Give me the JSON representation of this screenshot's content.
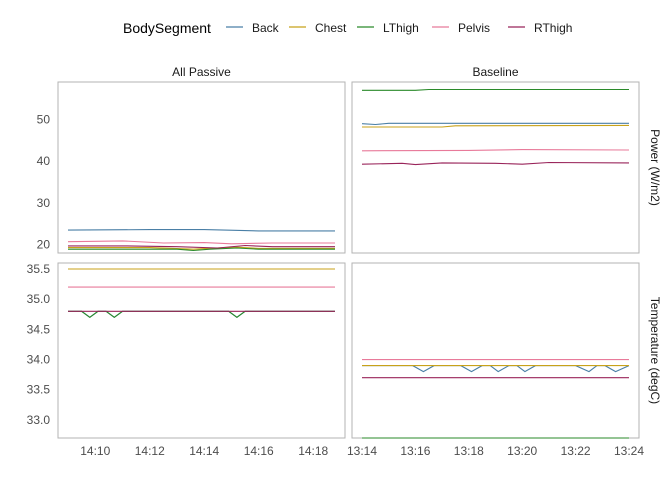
{
  "chart_data": {
    "type": "line",
    "legend": {
      "title": "BodySegment",
      "placement": "top",
      "entries": [
        {
          "name": "Back",
          "color": "#4a7fa6"
        },
        {
          "name": "Chest",
          "color": "#c8a21a"
        },
        {
          "name": "LThigh",
          "color": "#2a8a2a"
        },
        {
          "name": "Pelvis",
          "color": "#e87a9a"
        },
        {
          "name": "RThigh",
          "color": "#99245a"
        }
      ]
    },
    "columns": [
      {
        "label": "All Passive",
        "x_range": [
          "14:09",
          "14:18.8"
        ],
        "x_ticks": [
          "14:10",
          "14:12",
          "14:14",
          "14:16",
          "14:18"
        ]
      },
      {
        "label": "Baseline",
        "x_range": [
          "13:14",
          "13:24"
        ],
        "x_ticks": [
          "13:14",
          "13:16",
          "13:18",
          "13:20",
          "13:22",
          "13:24"
        ]
      }
    ],
    "rows": [
      {
        "label": "Power (W/m2)",
        "ylim": [
          18,
          59
        ],
        "y_ticks": [
          "20",
          "30",
          "40",
          "50"
        ]
      },
      {
        "label": "Temperature (degC)",
        "ylim": [
          32.7,
          35.6
        ],
        "y_ticks": [
          "33.0",
          "33.5",
          "34.0",
          "34.5",
          "35.0",
          "35.5"
        ]
      }
    ],
    "grid": false,
    "panels": [
      {
        "row": 0,
        "col": 0,
        "series": [
          {
            "name": "Back",
            "points": [
              [
                "14:09",
                23.5
              ],
              [
                "14:12",
                23.6
              ],
              [
                "14:14",
                23.6
              ],
              [
                "14:16",
                23.3
              ],
              [
                "14:18.8",
                23.3
              ]
            ]
          },
          {
            "name": "Chest",
            "points": [
              [
                "14:09",
                19.3
              ],
              [
                "14:12",
                19.3
              ],
              [
                "14:13.6",
                18.9
              ],
              [
                "14:14.1",
                19.1
              ],
              [
                "14:15.2",
                19.4
              ],
              [
                "14:16",
                19.1
              ],
              [
                "14:18.8",
                19.1
              ]
            ]
          },
          {
            "name": "LThigh",
            "points": [
              [
                "14:09",
                18.9
              ],
              [
                "14:13",
                18.9
              ],
              [
                "14:13.6",
                18.6
              ],
              [
                "14:14.2",
                18.9
              ],
              [
                "14:15.2",
                19.2
              ],
              [
                "14:16",
                18.9
              ],
              [
                "14:18.8",
                18.9
              ]
            ]
          },
          {
            "name": "Pelvis",
            "points": [
              [
                "14:09",
                20.7
              ],
              [
                "14:11",
                20.9
              ],
              [
                "14:12.5",
                20.4
              ],
              [
                "14:14",
                20.5
              ],
              [
                "14:15",
                20.2
              ],
              [
                "14:16.5",
                20.4
              ],
              [
                "14:18.8",
                20.4
              ]
            ]
          },
          {
            "name": "RThigh",
            "points": [
              [
                "14:09",
                19.7
              ],
              [
                "14:11",
                19.7
              ],
              [
                "14:13",
                19.5
              ],
              [
                "14:14.5",
                19.2
              ],
              [
                "14:15.5",
                19.8
              ],
              [
                "14:16.5",
                19.5
              ],
              [
                "14:18.8",
                19.5
              ]
            ]
          }
        ]
      },
      {
        "row": 0,
        "col": 1,
        "series": [
          {
            "name": "Back",
            "points": [
              [
                "13:14",
                49.0
              ],
              [
                "13:14.5",
                48.8
              ],
              [
                "13:15",
                49.1
              ],
              [
                "13:24",
                49.1
              ]
            ]
          },
          {
            "name": "Chest",
            "points": [
              [
                "13:14",
                48.2
              ],
              [
                "13:17",
                48.2
              ],
              [
                "13:17.5",
                48.5
              ],
              [
                "13:24",
                48.6
              ]
            ]
          },
          {
            "name": "LThigh",
            "points": [
              [
                "13:14",
                57.0
              ],
              [
                "13:16",
                57.0
              ],
              [
                "13:16.5",
                57.2
              ],
              [
                "13:24",
                57.2
              ]
            ]
          },
          {
            "name": "Pelvis",
            "points": [
              [
                "13:14",
                42.5
              ],
              [
                "13:18",
                42.6
              ],
              [
                "13:20",
                42.8
              ],
              [
                "13:24",
                42.7
              ]
            ]
          },
          {
            "name": "RThigh",
            "points": [
              [
                "13:14",
                39.3
              ],
              [
                "13:15.5",
                39.5
              ],
              [
                "13:16",
                39.2
              ],
              [
                "13:17",
                39.6
              ],
              [
                "13:19",
                39.5
              ],
              [
                "13:20",
                39.3
              ],
              [
                "13:21",
                39.7
              ],
              [
                "13:24",
                39.6
              ]
            ]
          }
        ]
      },
      {
        "row": 1,
        "col": 0,
        "series": [
          {
            "name": "Back",
            "points": [
              [
                "14:09",
                34.8
              ],
              [
                "14:09.5",
                34.8
              ],
              [
                "14:09.8",
                34.7
              ],
              [
                "14:10.1",
                34.8
              ],
              [
                "14:10.4",
                34.8
              ],
              [
                "14:10.7",
                34.7
              ],
              [
                "14:11",
                34.8
              ],
              [
                "14:14.9",
                34.8
              ],
              [
                "14:15.2",
                34.7
              ],
              [
                "14:15.5",
                34.8
              ],
              [
                "14:18.8",
                34.8
              ]
            ]
          },
          {
            "name": "Chest",
            "points": [
              [
                "14:09",
                35.5
              ],
              [
                "14:18.8",
                35.5
              ]
            ]
          },
          {
            "name": "LThigh",
            "points": [
              [
                "14:09",
                34.8
              ],
              [
                "14:09.5",
                34.8
              ],
              [
                "14:09.8",
                34.7
              ],
              [
                "14:10.1",
                34.8
              ],
              [
                "14:10.4",
                34.8
              ],
              [
                "14:10.7",
                34.7
              ],
              [
                "14:11",
                34.8
              ],
              [
                "14:14.9",
                34.8
              ],
              [
                "14:15.2",
                34.7
              ],
              [
                "14:15.5",
                34.8
              ],
              [
                "14:18.8",
                34.8
              ]
            ]
          },
          {
            "name": "Pelvis",
            "points": [
              [
                "14:09",
                35.2
              ],
              [
                "14:18.8",
                35.2
              ]
            ]
          },
          {
            "name": "RThigh",
            "points": [
              [
                "14:09",
                34.8
              ],
              [
                "14:18.8",
                34.8
              ]
            ]
          }
        ]
      },
      {
        "row": 1,
        "col": 1,
        "series": [
          {
            "name": "Back",
            "points": [
              [
                "13:14",
                33.9
              ],
              [
                "13:15.9",
                33.9
              ],
              [
                "13:16.3",
                33.8
              ],
              [
                "13:16.7",
                33.9
              ],
              [
                "13:17.7",
                33.9
              ],
              [
                "13:18.1",
                33.8
              ],
              [
                "13:18.5",
                33.9
              ],
              [
                "13:18.8",
                33.9
              ],
              [
                "13:19.1",
                33.8
              ],
              [
                "13:19.5",
                33.9
              ],
              [
                "13:19.8",
                33.9
              ],
              [
                "13:20.1",
                33.8
              ],
              [
                "13:20.5",
                33.9
              ],
              [
                "13:22",
                33.9
              ],
              [
                "13:22.5",
                33.8
              ],
              [
                "13:22.8",
                33.9
              ],
              [
                "13:23.1",
                33.9
              ],
              [
                "13:23.5",
                33.8
              ],
              [
                "13:24",
                33.9
              ]
            ]
          },
          {
            "name": "Chest",
            "points": [
              [
                "13:14",
                33.9
              ],
              [
                "13:24",
                33.9
              ]
            ]
          },
          {
            "name": "LThigh",
            "points": [
              [
                "13:14",
                32.7
              ],
              [
                "13:24",
                32.7
              ]
            ]
          },
          {
            "name": "Pelvis",
            "points": [
              [
                "13:14",
                34.0
              ],
              [
                "13:24",
                34.0
              ]
            ]
          },
          {
            "name": "RThigh",
            "points": [
              [
                "13:14",
                33.7
              ],
              [
                "13:24",
                33.7
              ]
            ]
          }
        ]
      }
    ]
  }
}
